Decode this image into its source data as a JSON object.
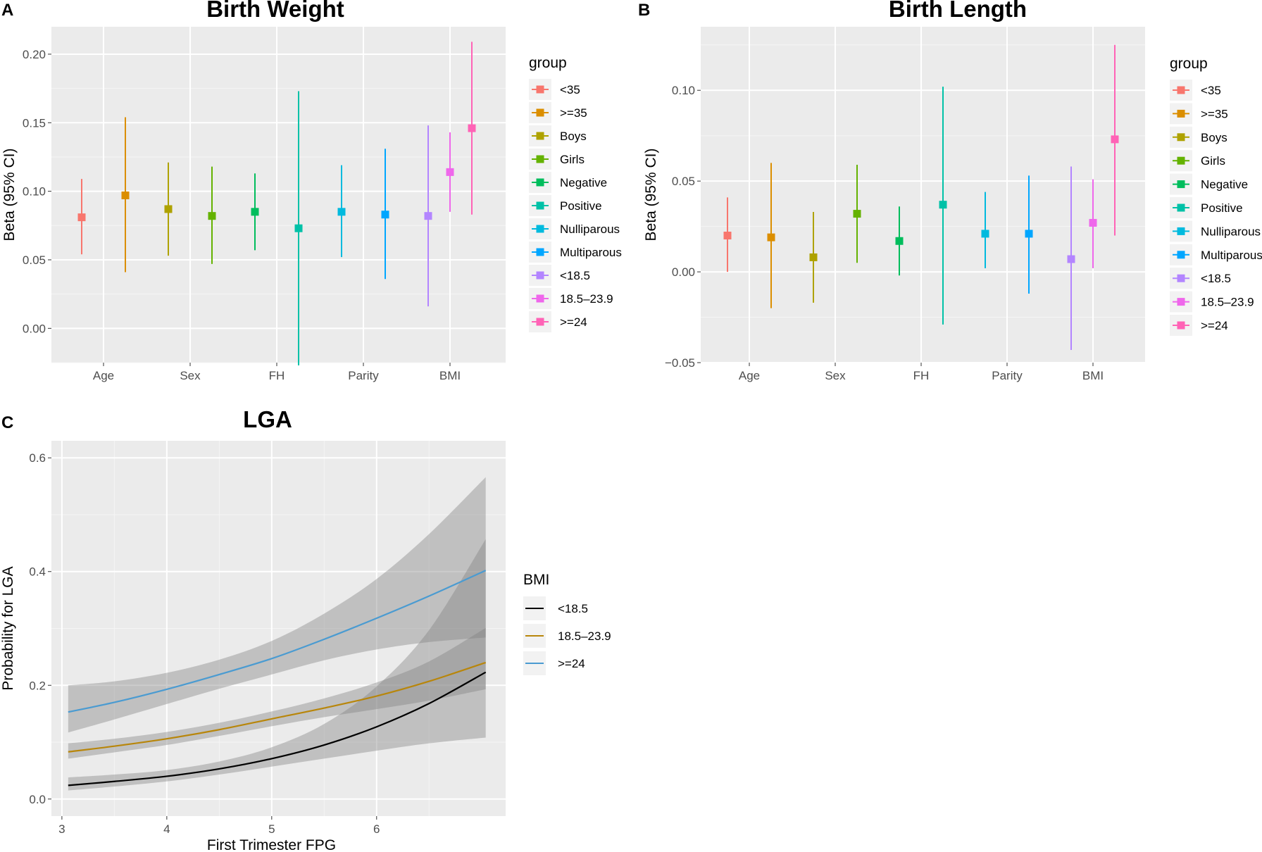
{
  "chart_data": [
    {
      "panel": "A",
      "type": "errorbar",
      "title": "Birth Weight",
      "xlabel": "",
      "ylabel": "Beta (95% CI)",
      "ylim": [
        -0.025,
        0.22
      ],
      "yticks": [
        0.0,
        0.05,
        0.1,
        0.15,
        0.2
      ],
      "ytick_labels": [
        "0.00",
        "0.05",
        "0.10",
        "0.15",
        "0.20"
      ],
      "categories": [
        "Age",
        "Sex",
        "FH",
        "Parity",
        "BMI"
      ],
      "legend_title": "group",
      "legend_position": "right",
      "groups": [
        {
          "name": "<35",
          "color": "#F8766D",
          "category": "Age",
          "offset": -1,
          "beta": 0.081,
          "lo": 0.054,
          "hi": 0.109
        },
        {
          "name": ">=35",
          "color": "#DB8E00",
          "category": "Age",
          "offset": 1,
          "beta": 0.097,
          "lo": 0.041,
          "hi": 0.154
        },
        {
          "name": "Boys",
          "color": "#AEA200",
          "category": "Sex",
          "offset": -1,
          "beta": 0.087,
          "lo": 0.053,
          "hi": 0.121
        },
        {
          "name": "Girls",
          "color": "#64B200",
          "category": "Sex",
          "offset": 1,
          "beta": 0.082,
          "lo": 0.047,
          "hi": 0.118
        },
        {
          "name": "Negative",
          "color": "#00BD5C",
          "category": "FH",
          "offset": -1,
          "beta": 0.085,
          "lo": 0.057,
          "hi": 0.113
        },
        {
          "name": "Positive",
          "color": "#00C1A7",
          "category": "FH",
          "offset": 1,
          "beta": 0.073,
          "lo": -0.027,
          "hi": 0.173
        },
        {
          "name": "Nulliparous",
          "color": "#00BADE",
          "category": "Parity",
          "offset": -1,
          "beta": 0.085,
          "lo": 0.052,
          "hi": 0.119
        },
        {
          "name": "Multiparous",
          "color": "#00A6FF",
          "category": "Parity",
          "offset": 1,
          "beta": 0.083,
          "lo": 0.036,
          "hi": 0.131
        },
        {
          "name": "<18.5",
          "color": "#B385FF",
          "category": "BMI",
          "offset": -1,
          "beta": 0.082,
          "lo": 0.016,
          "hi": 0.148
        },
        {
          "name": "18.5–23.9",
          "color": "#EF67EB",
          "category": "BMI",
          "offset": 0,
          "beta": 0.114,
          "lo": 0.085,
          "hi": 0.143
        },
        {
          "name": ">=24",
          "color": "#FF63B6",
          "category": "BMI",
          "offset": 1,
          "beta": 0.146,
          "lo": 0.083,
          "hi": 0.209
        }
      ]
    },
    {
      "panel": "B",
      "type": "errorbar",
      "title": "Birth Length",
      "xlabel": "",
      "ylabel": "Beta (95% CI)",
      "ylim": [
        -0.05,
        0.135
      ],
      "yticks": [
        -0.05,
        0.0,
        0.05,
        0.1
      ],
      "ytick_labels": [
        "−0.05",
        "0.00",
        "0.05",
        "0.10"
      ],
      "categories": [
        "Age",
        "Sex",
        "FH",
        "Parity",
        "BMI"
      ],
      "legend_title": "group",
      "legend_position": "right",
      "groups": [
        {
          "name": "<35",
          "color": "#F8766D",
          "category": "Age",
          "offset": -1,
          "beta": 0.02,
          "lo": 0.0,
          "hi": 0.041
        },
        {
          "name": ">=35",
          "color": "#DB8E00",
          "category": "Age",
          "offset": 1,
          "beta": 0.019,
          "lo": -0.02,
          "hi": 0.06
        },
        {
          "name": "Boys",
          "color": "#AEA200",
          "category": "Sex",
          "offset": -1,
          "beta": 0.008,
          "lo": -0.017,
          "hi": 0.033
        },
        {
          "name": "Girls",
          "color": "#64B200",
          "category": "Sex",
          "offset": 1,
          "beta": 0.032,
          "lo": 0.005,
          "hi": 0.059
        },
        {
          "name": "Negative",
          "color": "#00BD5C",
          "category": "FH",
          "offset": -1,
          "beta": 0.017,
          "lo": -0.002,
          "hi": 0.036
        },
        {
          "name": "Positive",
          "color": "#00C1A7",
          "category": "FH",
          "offset": 1,
          "beta": 0.037,
          "lo": -0.029,
          "hi": 0.102
        },
        {
          "name": "Nulliparous",
          "color": "#00BADE",
          "category": "Parity",
          "offset": -1,
          "beta": 0.021,
          "lo": 0.002,
          "hi": 0.044
        },
        {
          "name": "Multiparous",
          "color": "#00A6FF",
          "category": "Parity",
          "offset": 1,
          "beta": 0.021,
          "lo": -0.012,
          "hi": 0.053
        },
        {
          "name": "<18.5",
          "color": "#B385FF",
          "category": "BMI",
          "offset": -1,
          "beta": 0.007,
          "lo": -0.043,
          "hi": 0.058
        },
        {
          "name": "18.5–23.9",
          "color": "#EF67EB",
          "category": "BMI",
          "offset": 0,
          "beta": 0.027,
          "lo": 0.002,
          "hi": 0.051
        },
        {
          "name": ">=24",
          "color": "#FF63B6",
          "category": "BMI",
          "offset": 1,
          "beta": 0.073,
          "lo": 0.02,
          "hi": 0.125
        }
      ]
    },
    {
      "panel": "C",
      "type": "line",
      "title": "LGA",
      "xlabel": "First Trimester FPG",
      "ylabel": "Probability for LGA",
      "xlim": [
        2.9,
        7.23
      ],
      "ylim": [
        -0.03,
        0.63
      ],
      "xticks": [
        3,
        4,
        5,
        6
      ],
      "xtick_labels": [
        "3",
        "4",
        "5",
        "6"
      ],
      "yticks": [
        0.0,
        0.2,
        0.4,
        0.6
      ],
      "ytick_labels": [
        "0.0",
        "0.2",
        "0.4",
        "0.6"
      ],
      "legend_title": "BMI",
      "legend_position": "right",
      "series": [
        {
          "name": "<18.5",
          "color": "#000000",
          "x": [
            3.06,
            3.5,
            4.0,
            4.5,
            5.0,
            5.5,
            6.0,
            6.5,
            7.04
          ],
          "y": [
            0.024,
            0.031,
            0.04,
            0.053,
            0.071,
            0.095,
            0.127,
            0.168,
            0.223
          ],
          "lower": [
            0.015,
            0.022,
            0.031,
            0.043,
            0.057,
            0.071,
            0.085,
            0.098,
            0.108
          ],
          "upper": [
            0.038,
            0.043,
            0.051,
            0.066,
            0.091,
            0.132,
            0.198,
            0.297,
            0.457
          ]
        },
        {
          "name": "18.5–23.9",
          "color": "#B8860B",
          "x": [
            3.06,
            3.5,
            4.0,
            4.5,
            5.0,
            5.5,
            6.0,
            6.5,
            7.04
          ],
          "y": [
            0.083,
            0.093,
            0.106,
            0.122,
            0.141,
            0.16,
            0.181,
            0.207,
            0.24
          ],
          "lower": [
            0.071,
            0.082,
            0.095,
            0.111,
            0.128,
            0.144,
            0.158,
            0.173,
            0.193
          ],
          "upper": [
            0.098,
            0.106,
            0.118,
            0.134,
            0.154,
            0.177,
            0.205,
            0.242,
            0.301
          ]
        },
        {
          "name": ">=24",
          "color": "#4A9BD1",
          "x": [
            3.06,
            3.5,
            4.0,
            4.5,
            5.0,
            5.5,
            6.0,
            6.5,
            7.04
          ],
          "y": [
            0.153,
            0.17,
            0.193,
            0.219,
            0.247,
            0.281,
            0.318,
            0.357,
            0.402
          ],
          "lower": [
            0.117,
            0.14,
            0.167,
            0.194,
            0.219,
            0.244,
            0.263,
            0.276,
            0.284
          ],
          "upper": [
            0.2,
            0.207,
            0.222,
            0.245,
            0.278,
            0.326,
            0.387,
            0.466,
            0.566
          ]
        }
      ]
    }
  ]
}
